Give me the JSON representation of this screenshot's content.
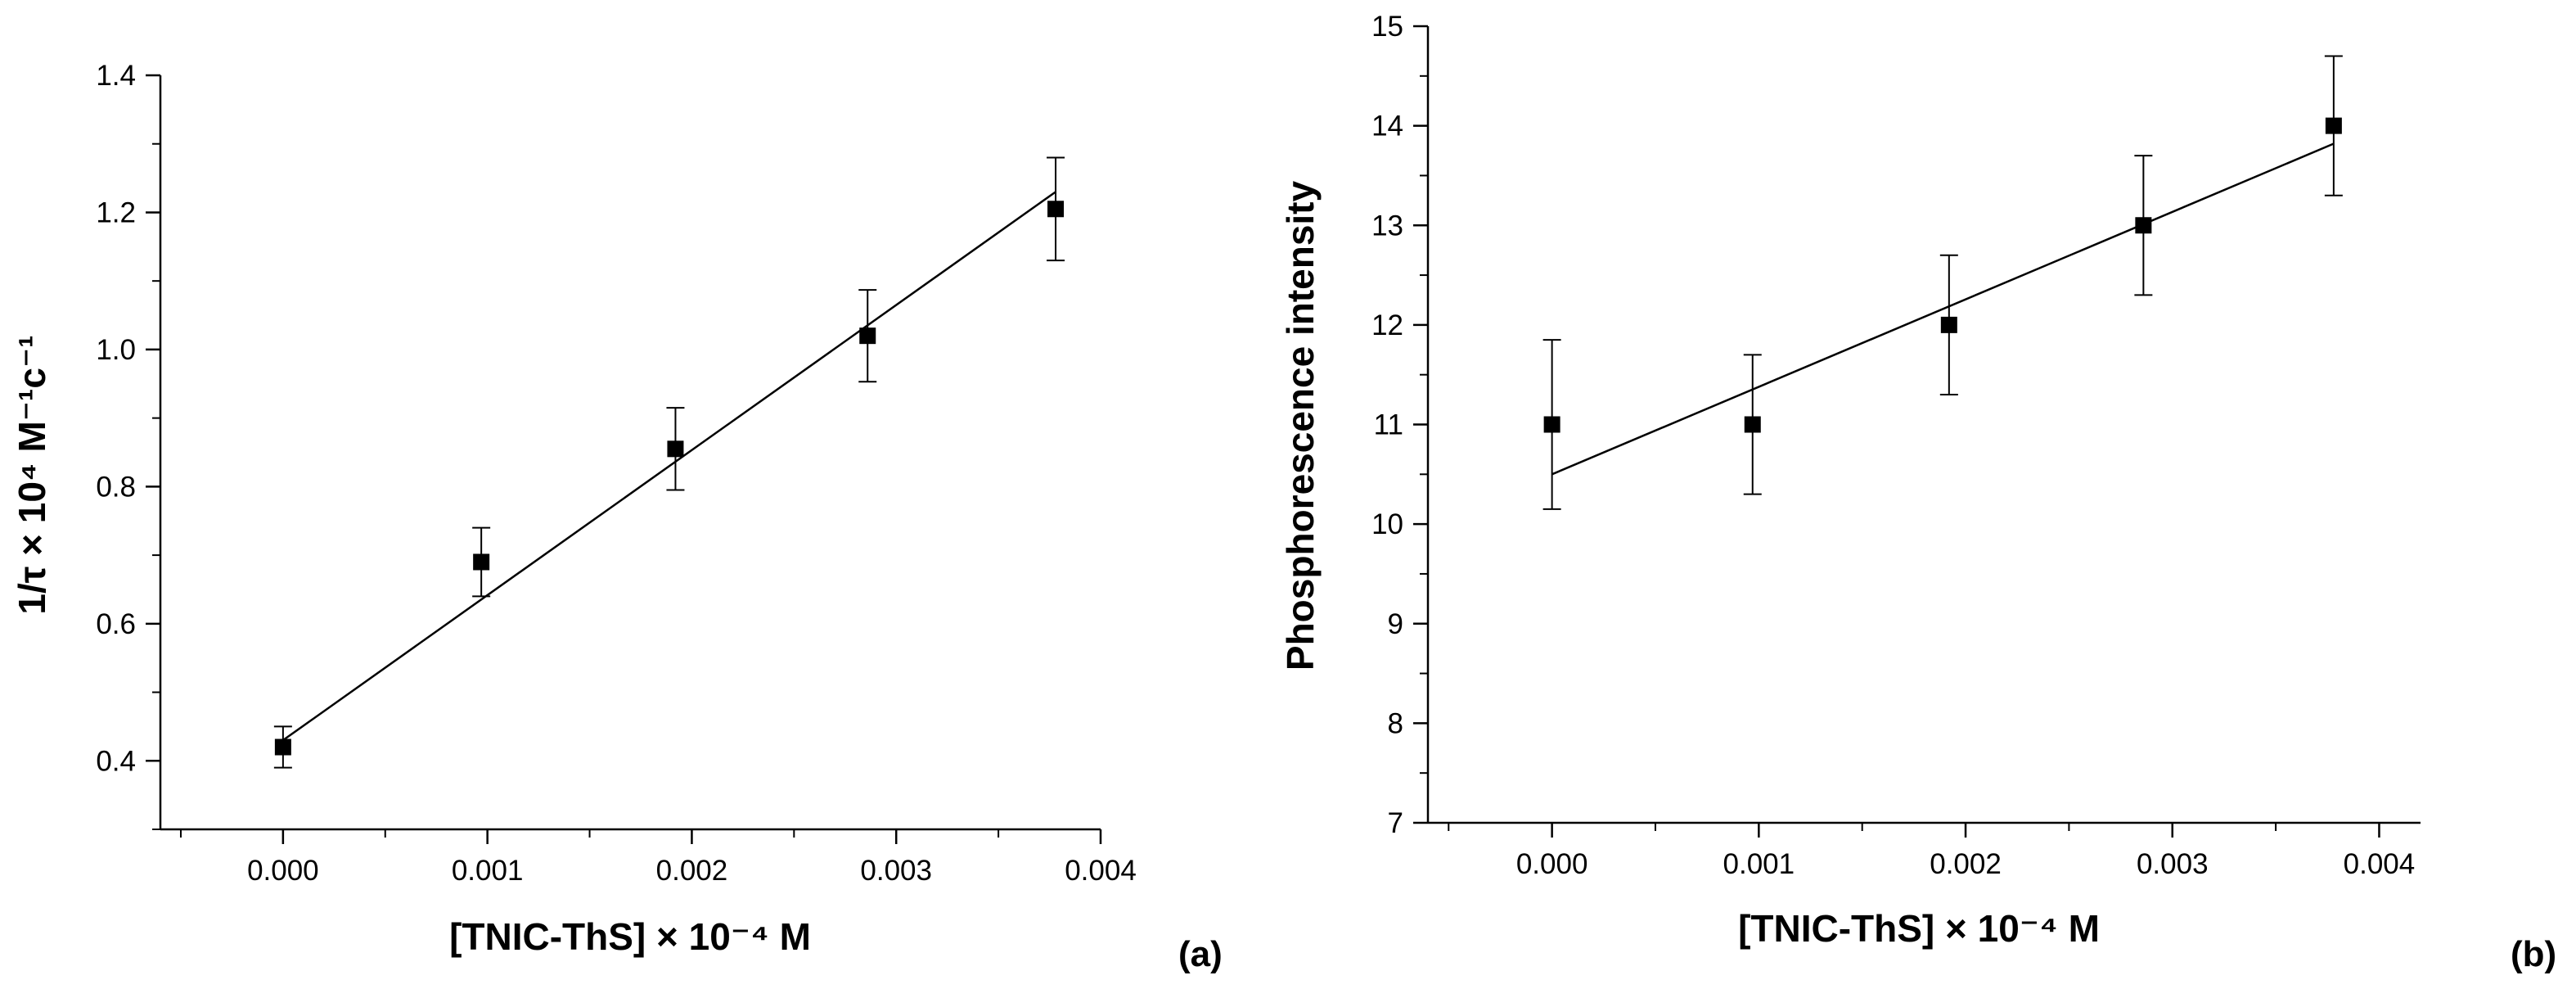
{
  "chart_data": [
    {
      "type": "scatter",
      "panel_label": "(a)",
      "xlabel": "[TNIC-ThS] × 10⁻⁴ M",
      "ylabel": "1/τ × 10⁴ M⁻¹c⁻¹",
      "xlim": [
        -0.0006,
        0.004
      ],
      "ylim": [
        0.3,
        1.4
      ],
      "x_ticks": [
        0.0,
        0.001,
        0.002,
        0.003,
        0.004
      ],
      "x_tick_labels": [
        "0.000",
        "0.001",
        "0.002",
        "0.003",
        "0.004"
      ],
      "y_ticks": [
        0.4,
        0.6,
        0.8,
        1.0,
        1.2,
        1.4
      ],
      "y_tick_labels": [
        "0.4",
        "0.6",
        "0.8",
        "1.0",
        "1.2",
        "1.4"
      ],
      "series": [
        {
          "name": "data",
          "x": [
            0.0,
            0.00097,
            0.00192,
            0.00286,
            0.00378
          ],
          "y": [
            0.42,
            0.69,
            0.855,
            1.02,
            1.205
          ],
          "err": [
            0.03,
            0.05,
            0.06,
            0.067,
            0.075
          ]
        }
      ],
      "fit": {
        "x": [
          0.0,
          0.00378
        ],
        "y": [
          0.43,
          1.23
        ]
      },
      "grid": false
    },
    {
      "type": "scatter",
      "panel_label": "(b)",
      "xlabel": "[TNIC-ThS] × 10⁻⁴ M",
      "ylabel": "Phosphorescence intensity",
      "xlim": [
        -0.0006,
        0.0042
      ],
      "ylim": [
        7,
        15
      ],
      "x_ticks": [
        0.0,
        0.001,
        0.002,
        0.003,
        0.004
      ],
      "x_tick_labels": [
        "0.000",
        "0.001",
        "0.002",
        "0.003",
        "0.004"
      ],
      "y_ticks": [
        7,
        8,
        9,
        10,
        11,
        12,
        13,
        14,
        15
      ],
      "y_tick_labels": [
        "7",
        "8",
        "9",
        "10",
        "11",
        "12",
        "13",
        "14",
        "15"
      ],
      "series": [
        {
          "name": "data",
          "x": [
            0.0,
            0.00097,
            0.00192,
            0.00286,
            0.00378
          ],
          "y": [
            11,
            11,
            12,
            13,
            14
          ],
          "err": [
            0.85,
            0.7,
            0.7,
            0.7,
            0.7
          ]
        }
      ],
      "fit": {
        "x": [
          0.0,
          0.00378
        ],
        "y": [
          10.5,
          13.82
        ]
      },
      "grid": false
    }
  ]
}
